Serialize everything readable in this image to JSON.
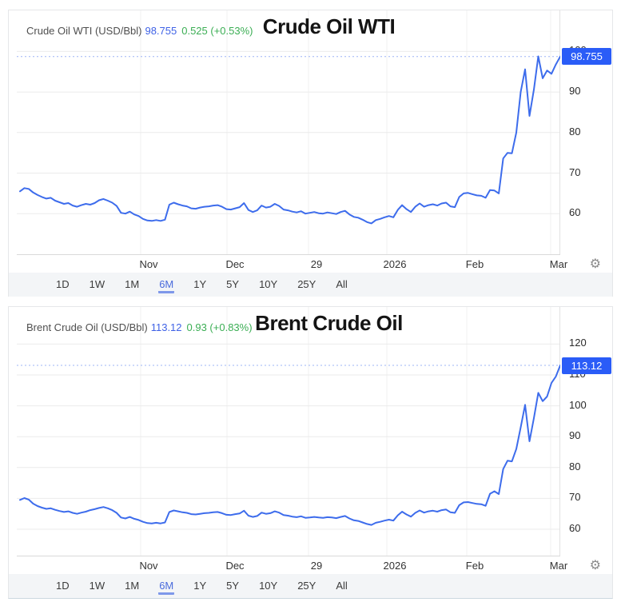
{
  "chart_data": [
    {
      "type": "line",
      "title": "Crude Oil WTI",
      "quote_label": "Crude Oil WTI (USD/Bbl)",
      "last_price": "98.755",
      "change": "0.525 (+0.53%)",
      "unit": "USD/Bbl",
      "x_ticks": [
        "Nov",
        "Dec",
        "29",
        "2026",
        "Feb",
        "Mar"
      ],
      "y_ticks": [
        100,
        90,
        80,
        70,
        60
      ],
      "ylim": [
        50,
        110
      ],
      "x_range_note": "6M view, ~Sep 2025 to Mar 2026",
      "grid": true,
      "values": [
        65.5,
        66.3,
        66.1,
        65.2,
        64.6,
        64.1,
        63.7,
        63.9,
        63.2,
        62.8,
        62.4,
        62.6,
        62.0,
        61.7,
        62.1,
        62.4,
        62.2,
        62.6,
        63.3,
        63.6,
        63.2,
        62.7,
        61.9,
        60.2,
        60.0,
        60.5,
        59.8,
        59.4,
        58.7,
        58.3,
        58.2,
        58.4,
        58.2,
        58.5,
        62.2,
        62.7,
        62.3,
        62.0,
        61.8,
        61.3,
        61.2,
        61.5,
        61.7,
        61.8,
        62.0,
        62.1,
        61.7,
        61.1,
        61.0,
        61.3,
        61.6,
        62.6,
        60.9,
        60.4,
        60.8,
        62.0,
        61.5,
        61.7,
        62.4,
        61.9,
        61.0,
        60.8,
        60.5,
        60.3,
        60.6,
        60.0,
        60.2,
        60.4,
        60.1,
        60.0,
        60.3,
        60.1,
        59.9,
        60.4,
        60.7,
        59.8,
        59.2,
        59.0,
        58.5,
        57.9,
        57.6,
        58.4,
        58.7,
        59.1,
        59.4,
        59.1,
        60.9,
        62.1,
        61.1,
        60.4,
        61.7,
        62.5,
        61.7,
        62.1,
        62.3,
        62.0,
        62.5,
        62.7,
        61.8,
        61.6,
        64.1,
        65.0,
        65.1,
        64.8,
        64.5,
        64.4,
        63.9,
        65.8,
        65.7,
        65.0,
        73.6,
        75.0,
        74.9,
        80.0,
        90.0,
        95.6,
        84.1,
        90.6,
        98.8,
        93.4,
        95.3,
        94.5,
        96.8,
        98.755
      ]
    },
    {
      "type": "line",
      "title": "Brent Crude Oil",
      "quote_label": "Brent Crude Oil (USD/Bbl)",
      "last_price": "113.12",
      "change": "0.93 (+0.83%)",
      "unit": "USD/Bbl",
      "x_ticks": [
        "Nov",
        "Dec",
        "29",
        "2026",
        "Feb",
        "Mar"
      ],
      "y_ticks": [
        120,
        110,
        100,
        90,
        80,
        70,
        60
      ],
      "ylim": [
        55,
        125
      ],
      "x_range_note": "6M view, ~Sep 2025 to Mar 2026",
      "grid": true,
      "values": [
        69.5,
        70.1,
        69.6,
        68.3,
        67.5,
        67.0,
        66.6,
        66.8,
        66.3,
        65.9,
        65.6,
        65.8,
        65.3,
        65.0,
        65.4,
        65.7,
        66.2,
        66.5,
        66.9,
        67.2,
        66.8,
        66.2,
        65.3,
        63.8,
        63.5,
        64.0,
        63.4,
        63.0,
        62.4,
        62.0,
        61.9,
        62.1,
        61.9,
        62.2,
        65.6,
        66.1,
        65.8,
        65.5,
        65.3,
        64.9,
        64.8,
        65.0,
        65.2,
        65.3,
        65.5,
        65.6,
        65.2,
        64.7,
        64.6,
        64.9,
        65.1,
        66.0,
        64.4,
        64.0,
        64.3,
        65.4,
        65.0,
        65.2,
        65.8,
        65.4,
        64.6,
        64.4,
        64.1,
        63.9,
        64.2,
        63.7,
        63.8,
        64.0,
        63.8,
        63.7,
        63.9,
        63.8,
        63.6,
        64.0,
        64.3,
        63.5,
        62.9,
        62.7,
        62.2,
        61.7,
        61.4,
        62.1,
        62.4,
        62.8,
        63.1,
        62.8,
        64.5,
        65.7,
        64.8,
        64.1,
        65.3,
        66.1,
        65.4,
        65.8,
        66.0,
        65.7,
        66.2,
        66.4,
        65.5,
        65.3,
        67.8,
        68.7,
        68.8,
        68.5,
        68.2,
        68.1,
        67.6,
        71.5,
        72.3,
        71.4,
        79.5,
        82.2,
        82.0,
        86.0,
        93.0,
        100.3,
        88.5,
        96.0,
        104.2,
        101.5,
        103.0,
        107.4,
        109.5,
        113.12
      ]
    }
  ],
  "ui": {
    "timeframes": [
      "1D",
      "1W",
      "1M",
      "6M",
      "1Y",
      "5Y",
      "10Y",
      "25Y",
      "All"
    ],
    "selected_timeframe": "6M",
    "gear_glyph": "⚙",
    "colors": {
      "line": "#3d6cec",
      "badge_bg": "#2a5cf7",
      "price_text": "#3f62e6",
      "change_up": "#3bae54",
      "grid_h": "#ebebeb",
      "grid_v": "#f0f0f0",
      "axis": "#d9d9d9",
      "dotted_price_line": "#9db4f6",
      "toolbar_bg": "#f3f5f7"
    }
  }
}
